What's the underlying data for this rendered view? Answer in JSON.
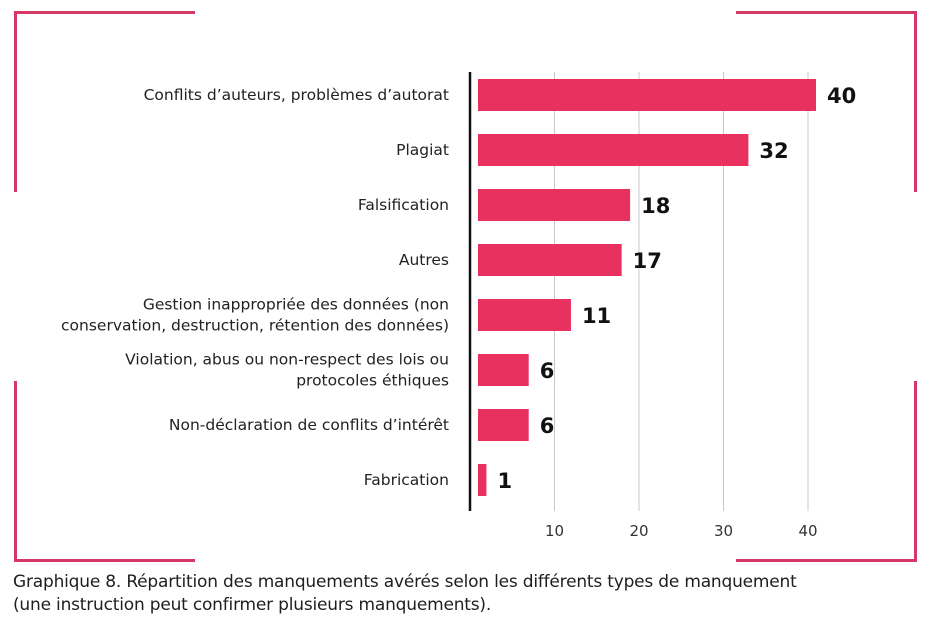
{
  "theme": {
    "bar_color": "#e8315f",
    "frame_color": "#d63868",
    "grid_color": "#c8c8c8",
    "axis_color": "#111111"
  },
  "chart_data": {
    "type": "bar",
    "orientation": "horizontal",
    "categories": [
      [
        "Conflits d’auteurs, problèmes d’autorat"
      ],
      [
        "Plagiat"
      ],
      [
        "Falsification"
      ],
      [
        "Autres"
      ],
      [
        "Gestion inappropriée des données (non",
        "conservation, destruction, rétention des données)"
      ],
      [
        "Violation, abus ou non-respect des lois ou",
        "protocoles éthiques"
      ],
      [
        "Non-déclaration de conflits d’intérêt"
      ],
      [
        "Fabrication"
      ]
    ],
    "values": [
      40,
      32,
      18,
      17,
      11,
      6,
      6,
      1
    ],
    "xticks": [
      10,
      20,
      30,
      40
    ],
    "xlim": [
      0,
      40
    ],
    "grid": "vertical",
    "data_labels": true
  },
  "caption": {
    "line1": "Graphique 8. Répartition des manquements avérés selon les différents types de manquement",
    "line2": "(une instruction peut confirmer plusieurs manquements)."
  }
}
